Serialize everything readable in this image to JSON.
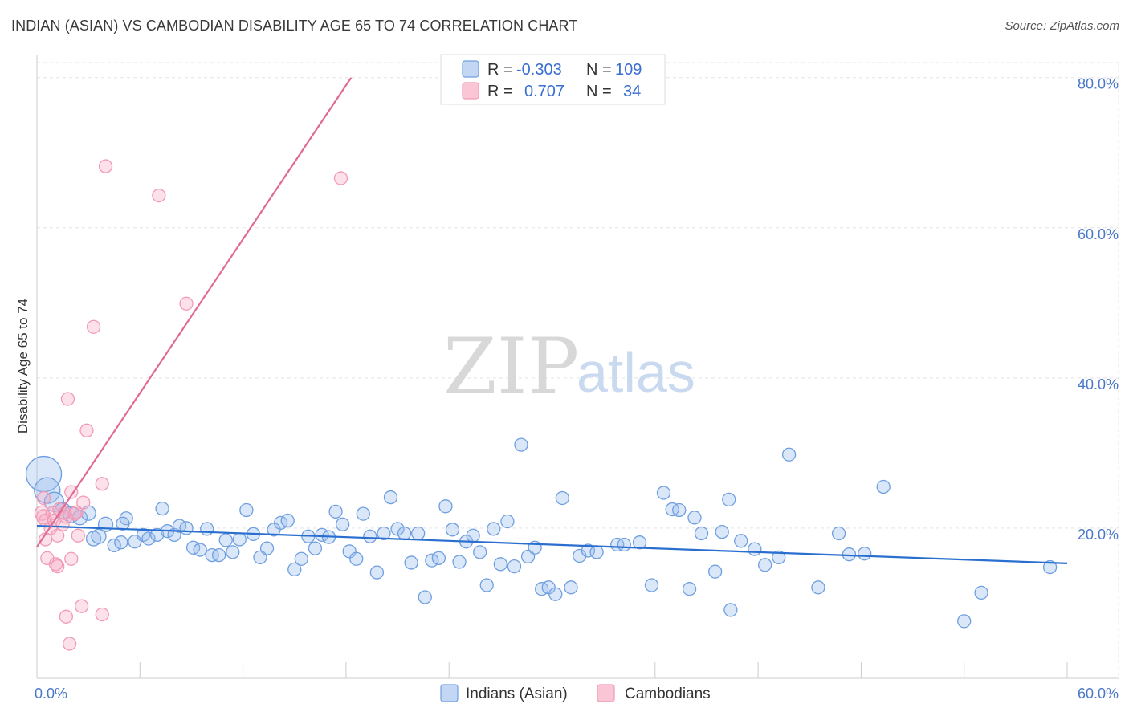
{
  "title": "INDIAN (ASIAN) VS CAMBODIAN DISABILITY AGE 65 TO 74 CORRELATION CHART",
  "source": "Source: ZipAtlas.com",
  "watermark": {
    "zip": "ZIP",
    "atlas": "atlas"
  },
  "legend_top": [
    {
      "r_label": "R =",
      "r_value": "-0.303",
      "n_label": "N =",
      "n_value": "109"
    },
    {
      "r_label": "R =",
      "r_value": "0.707",
      "n_label": "N =",
      "n_value": "34"
    }
  ],
  "chart_data": {
    "type": "scatter",
    "title": "INDIAN (ASIAN) VS CAMBODIAN DISABILITY AGE 65 TO 74 CORRELATION CHART",
    "xlabel": "",
    "ylabel": "Disability Age 65 to 74",
    "xlim": [
      0,
      60
    ],
    "ylim": [
      0,
      82
    ],
    "x_tick_labels": [
      "0.0%",
      "60.0%"
    ],
    "y_tick_labels": [
      "20.0%",
      "40.0%",
      "60.0%",
      "80.0%"
    ],
    "y_ticks": [
      20,
      40,
      60,
      80
    ],
    "grid": true,
    "legend_position": "top-center",
    "colors": {
      "indians": "#6f9fe0",
      "cambodians": "#f29ab5",
      "indians_line": "#2a6fd0",
      "cambodians_line": "#e06a93"
    },
    "series": [
      {
        "name": "Indians (Asian)",
        "R": -0.303,
        "N": 109,
        "trend": {
          "x": [
            0,
            60
          ],
          "y": [
            20.3,
            15.3
          ]
        },
        "points": [
          [
            0.4,
            27.2,
            22
          ],
          [
            0.6,
            25.0,
            16
          ],
          [
            1.0,
            23.5,
            12
          ],
          [
            1.5,
            22.3,
            10
          ],
          [
            2.0,
            21.8,
            10
          ],
          [
            2.5,
            21.4,
            9
          ],
          [
            3.0,
            22.0,
            9
          ],
          [
            3.3,
            18.6,
            9
          ],
          [
            3.6,
            18.9,
            9
          ],
          [
            4.0,
            20.5,
            9
          ],
          [
            4.5,
            17.7,
            8
          ],
          [
            4.9,
            18.1,
            8
          ],
          [
            5.2,
            21.3,
            8
          ],
          [
            5.7,
            18.2,
            8
          ],
          [
            6.2,
            19.1,
            8
          ],
          [
            6.5,
            18.6,
            8
          ],
          [
            7.0,
            19.1,
            8
          ],
          [
            7.3,
            22.6,
            8
          ],
          [
            7.6,
            19.6,
            8
          ],
          [
            8.0,
            19.1,
            8
          ],
          [
            8.3,
            20.3,
            8
          ],
          [
            8.7,
            20.0,
            8
          ],
          [
            9.1,
            17.4,
            8
          ],
          [
            9.5,
            17.1,
            8
          ],
          [
            9.9,
            19.9,
            8
          ],
          [
            10.2,
            16.4,
            8
          ],
          [
            10.6,
            16.4,
            8
          ],
          [
            11.0,
            18.4,
            8
          ],
          [
            11.4,
            16.8,
            8
          ],
          [
            11.8,
            18.5,
            8
          ],
          [
            12.2,
            22.4,
            8
          ],
          [
            12.6,
            19.2,
            8
          ],
          [
            13.0,
            16.1,
            8
          ],
          [
            13.4,
            17.3,
            8
          ],
          [
            13.8,
            19.8,
            8
          ],
          [
            14.2,
            20.7,
            8
          ],
          [
            14.6,
            21.0,
            8
          ],
          [
            15.0,
            14.5,
            8
          ],
          [
            15.4,
            15.9,
            8
          ],
          [
            15.8,
            18.9,
            8
          ],
          [
            16.2,
            17.3,
            8
          ],
          [
            16.6,
            19.1,
            8
          ],
          [
            17.0,
            18.8,
            8
          ],
          [
            17.4,
            22.2,
            8
          ],
          [
            17.8,
            20.5,
            8
          ],
          [
            18.2,
            16.9,
            8
          ],
          [
            18.6,
            15.9,
            8
          ],
          [
            19.0,
            21.9,
            8
          ],
          [
            19.4,
            18.9,
            8
          ],
          [
            19.8,
            14.1,
            8
          ],
          [
            20.2,
            19.3,
            8
          ],
          [
            20.6,
            24.1,
            8
          ],
          [
            21.0,
            19.9,
            8
          ],
          [
            21.4,
            19.3,
            8
          ],
          [
            21.8,
            15.4,
            8
          ],
          [
            22.2,
            19.3,
            8
          ],
          [
            22.6,
            10.8,
            8
          ],
          [
            23.0,
            15.7,
            8
          ],
          [
            23.4,
            16.0,
            8
          ],
          [
            23.8,
            22.9,
            8
          ],
          [
            24.2,
            19.8,
            8
          ],
          [
            24.6,
            15.5,
            8
          ],
          [
            25.0,
            18.2,
            8
          ],
          [
            25.4,
            19.0,
            8
          ],
          [
            25.8,
            16.8,
            8
          ],
          [
            26.2,
            12.4,
            8
          ],
          [
            26.6,
            19.9,
            8
          ],
          [
            27.0,
            15.2,
            8
          ],
          [
            27.4,
            20.9,
            8
          ],
          [
            27.8,
            14.9,
            8
          ],
          [
            28.2,
            31.1,
            8
          ],
          [
            28.6,
            16.2,
            8
          ],
          [
            29.0,
            17.4,
            8
          ],
          [
            29.4,
            11.9,
            8
          ],
          [
            29.8,
            12.1,
            8
          ],
          [
            30.2,
            11.2,
            8
          ],
          [
            30.6,
            24.0,
            8
          ],
          [
            31.1,
            12.1,
            8
          ],
          [
            31.6,
            16.3,
            8
          ],
          [
            32.1,
            17.0,
            8
          ],
          [
            32.6,
            16.8,
            8
          ],
          [
            33.8,
            17.8,
            8
          ],
          [
            34.2,
            17.8,
            8
          ],
          [
            35.1,
            18.1,
            8
          ],
          [
            35.8,
            12.4,
            8
          ],
          [
            36.5,
            24.7,
            8
          ],
          [
            37.0,
            22.5,
            8
          ],
          [
            37.4,
            22.4,
            8
          ],
          [
            38.3,
            21.4,
            8
          ],
          [
            38.0,
            11.9,
            8
          ],
          [
            38.7,
            19.3,
            8
          ],
          [
            39.5,
            14.2,
            8
          ],
          [
            40.4,
            9.1,
            8
          ],
          [
            40.3,
            23.8,
            8
          ],
          [
            41.0,
            18.3,
            8
          ],
          [
            41.8,
            17.2,
            8
          ],
          [
            42.4,
            15.1,
            8
          ],
          [
            43.2,
            16.1,
            8
          ],
          [
            43.8,
            29.8,
            8
          ],
          [
            45.5,
            12.1,
            8
          ],
          [
            46.7,
            19.3,
            8
          ],
          [
            47.3,
            16.5,
            8
          ],
          [
            48.2,
            16.6,
            8
          ],
          [
            49.3,
            25.5,
            8
          ],
          [
            54.0,
            7.6,
            8
          ],
          [
            55.0,
            11.4,
            8
          ],
          [
            59.0,
            14.8,
            8
          ],
          [
            39.9,
            19.5,
            8
          ],
          [
            5.0,
            20.6,
            8
          ]
        ]
      },
      {
        "name": "Cambodians",
        "R": 0.707,
        "N": 34,
        "trend": {
          "x": [
            0,
            18.3
          ],
          "y": [
            17.5,
            80.0
          ]
        },
        "points": [
          [
            0.3,
            22.0,
            9
          ],
          [
            0.4,
            21.5,
            9
          ],
          [
            0.4,
            24.0,
            8
          ],
          [
            0.5,
            21.0,
            8
          ],
          [
            0.5,
            18.5,
            8
          ],
          [
            0.6,
            16.0,
            8
          ],
          [
            0.8,
            20.0,
            8
          ],
          [
            0.9,
            22.0,
            8
          ],
          [
            1.0,
            21.0,
            8
          ],
          [
            1.1,
            15.2,
            8
          ],
          [
            1.2,
            14.9,
            8
          ],
          [
            1.2,
            19.0,
            8
          ],
          [
            1.3,
            22.5,
            8
          ],
          [
            1.5,
            20.5,
            8
          ],
          [
            1.6,
            22.0,
            8
          ],
          [
            1.7,
            21.5,
            8
          ],
          [
            1.7,
            8.2,
            8
          ],
          [
            1.8,
            37.2,
            8
          ],
          [
            1.9,
            4.6,
            8
          ],
          [
            2.0,
            24.8,
            8
          ],
          [
            2.0,
            15.9,
            8
          ],
          [
            2.2,
            21.9,
            8
          ],
          [
            2.3,
            22.1,
            8
          ],
          [
            2.4,
            19.0,
            8
          ],
          [
            2.6,
            9.6,
            8
          ],
          [
            2.7,
            23.4,
            8
          ],
          [
            2.9,
            33.0,
            8
          ],
          [
            3.3,
            46.8,
            8
          ],
          [
            3.8,
            8.5,
            8
          ],
          [
            3.8,
            25.9,
            8
          ],
          [
            4.0,
            68.2,
            8
          ],
          [
            7.1,
            64.3,
            8
          ],
          [
            8.7,
            49.9,
            8
          ],
          [
            17.7,
            66.6,
            8
          ]
        ]
      }
    ]
  },
  "legend_bottom": [
    {
      "label": "Indians (Asian)"
    },
    {
      "label": "Cambodians"
    }
  ]
}
